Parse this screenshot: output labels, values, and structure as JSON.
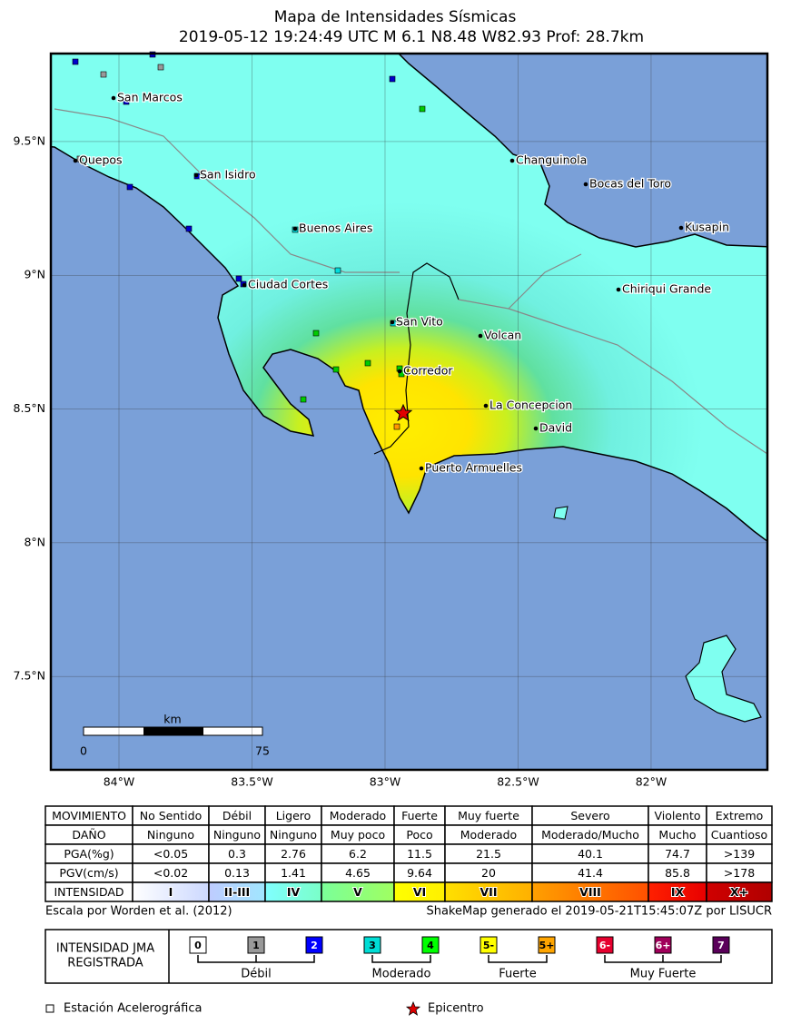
{
  "title": "Mapa de Intensidades Sísmicas",
  "subtitle": "2019-05-12 19:24:49 UTC M 6.1 N8.48 W82.93 Prof: 28.7km",
  "map": {
    "xlim": [
      -84.256,
      -81.563
    ],
    "ylim": [
      7.151,
      9.829
    ],
    "xticks": [
      {
        "value": -84,
        "label": "84°W"
      },
      {
        "value": -83.5,
        "label": "83.5°W"
      },
      {
        "value": -83,
        "label": "83°W"
      },
      {
        "value": -82.5,
        "label": "82.5°W"
      },
      {
        "value": -82,
        "label": "82°W"
      }
    ],
    "yticks": [
      {
        "value": 9.5,
        "label": "9.5°N"
      },
      {
        "value": 9,
        "label": "9°N"
      },
      {
        "value": 8.5,
        "label": "8.5°N"
      },
      {
        "value": 8,
        "label": "8°N"
      },
      {
        "value": 7.5,
        "label": "7.5°N"
      }
    ],
    "cities": [
      "San Marcos",
      "Quepos",
      "San Isidro",
      "Buenos Aires",
      "Ciudad Cortes",
      "San Vito",
      "Corredor",
      "Volcan",
      "Changuinola",
      "Bocas del Toro",
      "Kusapin",
      "Chiriqui Grande",
      "La Concepcion",
      "David",
      "Puerto Armuelles"
    ],
    "scale": {
      "unit": "km",
      "start": "0",
      "end": "75"
    }
  },
  "table": {
    "rows": [
      [
        "MOVIMIENTO",
        "No Sentido",
        "Débil",
        "Ligero",
        "Moderado",
        "Fuerte",
        "Muy fuerte",
        "Severo",
        "Violento",
        "Extremo"
      ],
      [
        "DAÑO",
        "Ninguno",
        "Ninguno",
        "Ninguno",
        "Muy poco",
        "Poco",
        "Moderado",
        "Moderado/Mucho",
        "Mucho",
        "Cuantioso"
      ],
      [
        "PGA(%g)",
        "<0.05",
        "0.3",
        "2.76",
        "6.2",
        "11.5",
        "21.5",
        "40.1",
        "74.7",
        ">139"
      ],
      [
        "PGV(cm/s)",
        "<0.02",
        "0.13",
        "1.41",
        "4.65",
        "9.64",
        "20",
        "41.4",
        "85.8",
        ">178"
      ],
      [
        "INTENSIDAD",
        "I",
        "II-III",
        "IV",
        "V",
        "VI",
        "VII",
        "VIII",
        "IX",
        "X+"
      ]
    ]
  },
  "credits": {
    "left": "Escala por  Worden et al. (2012)",
    "right": "ShakeMap generado el 2019-05-21T15:45:07Z por LISUCR"
  },
  "jma": {
    "title": [
      "INTENSIDAD JMA",
      "REGISTRADA"
    ],
    "levels": [
      "0",
      "1",
      "2",
      "3",
      "4",
      "5-",
      "5+",
      "6-",
      "6+",
      "7"
    ],
    "groups": [
      "Débil",
      "Moderado",
      "Fuerte",
      "Muy Fuerte"
    ]
  },
  "legend": {
    "station": "Estación Acelerográfica",
    "epicenter": "Epicentro"
  }
}
